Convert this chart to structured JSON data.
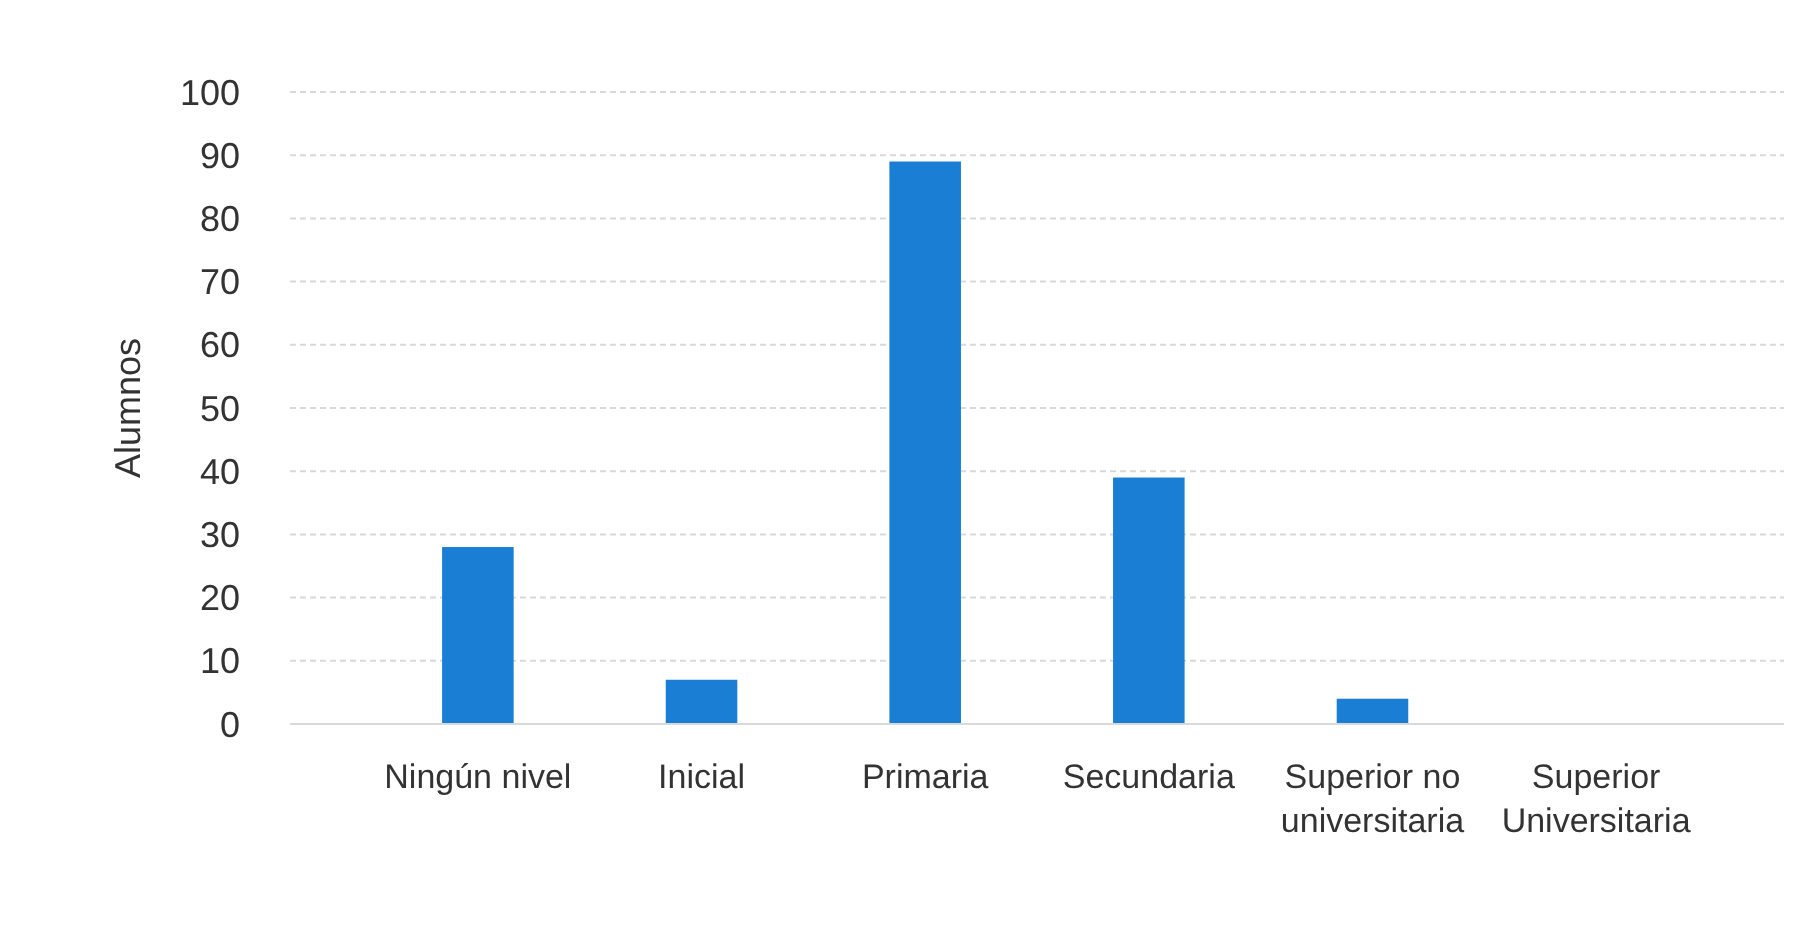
{
  "chart_data": {
    "type": "bar",
    "ylabel": "Alumnos",
    "categories": [
      "Ningún nivel",
      "Inicial",
      "Primaria",
      "Secundaria",
      "Superior no universitaria",
      "Superior Universitaria"
    ],
    "values": [
      28,
      7,
      89,
      39,
      4,
      0
    ],
    "color": "#1a7fd4",
    "ylim": [
      0,
      100
    ],
    "yticks": [
      0,
      10,
      20,
      30,
      40,
      50,
      60,
      70,
      80,
      90,
      100
    ],
    "grid": "y"
  }
}
